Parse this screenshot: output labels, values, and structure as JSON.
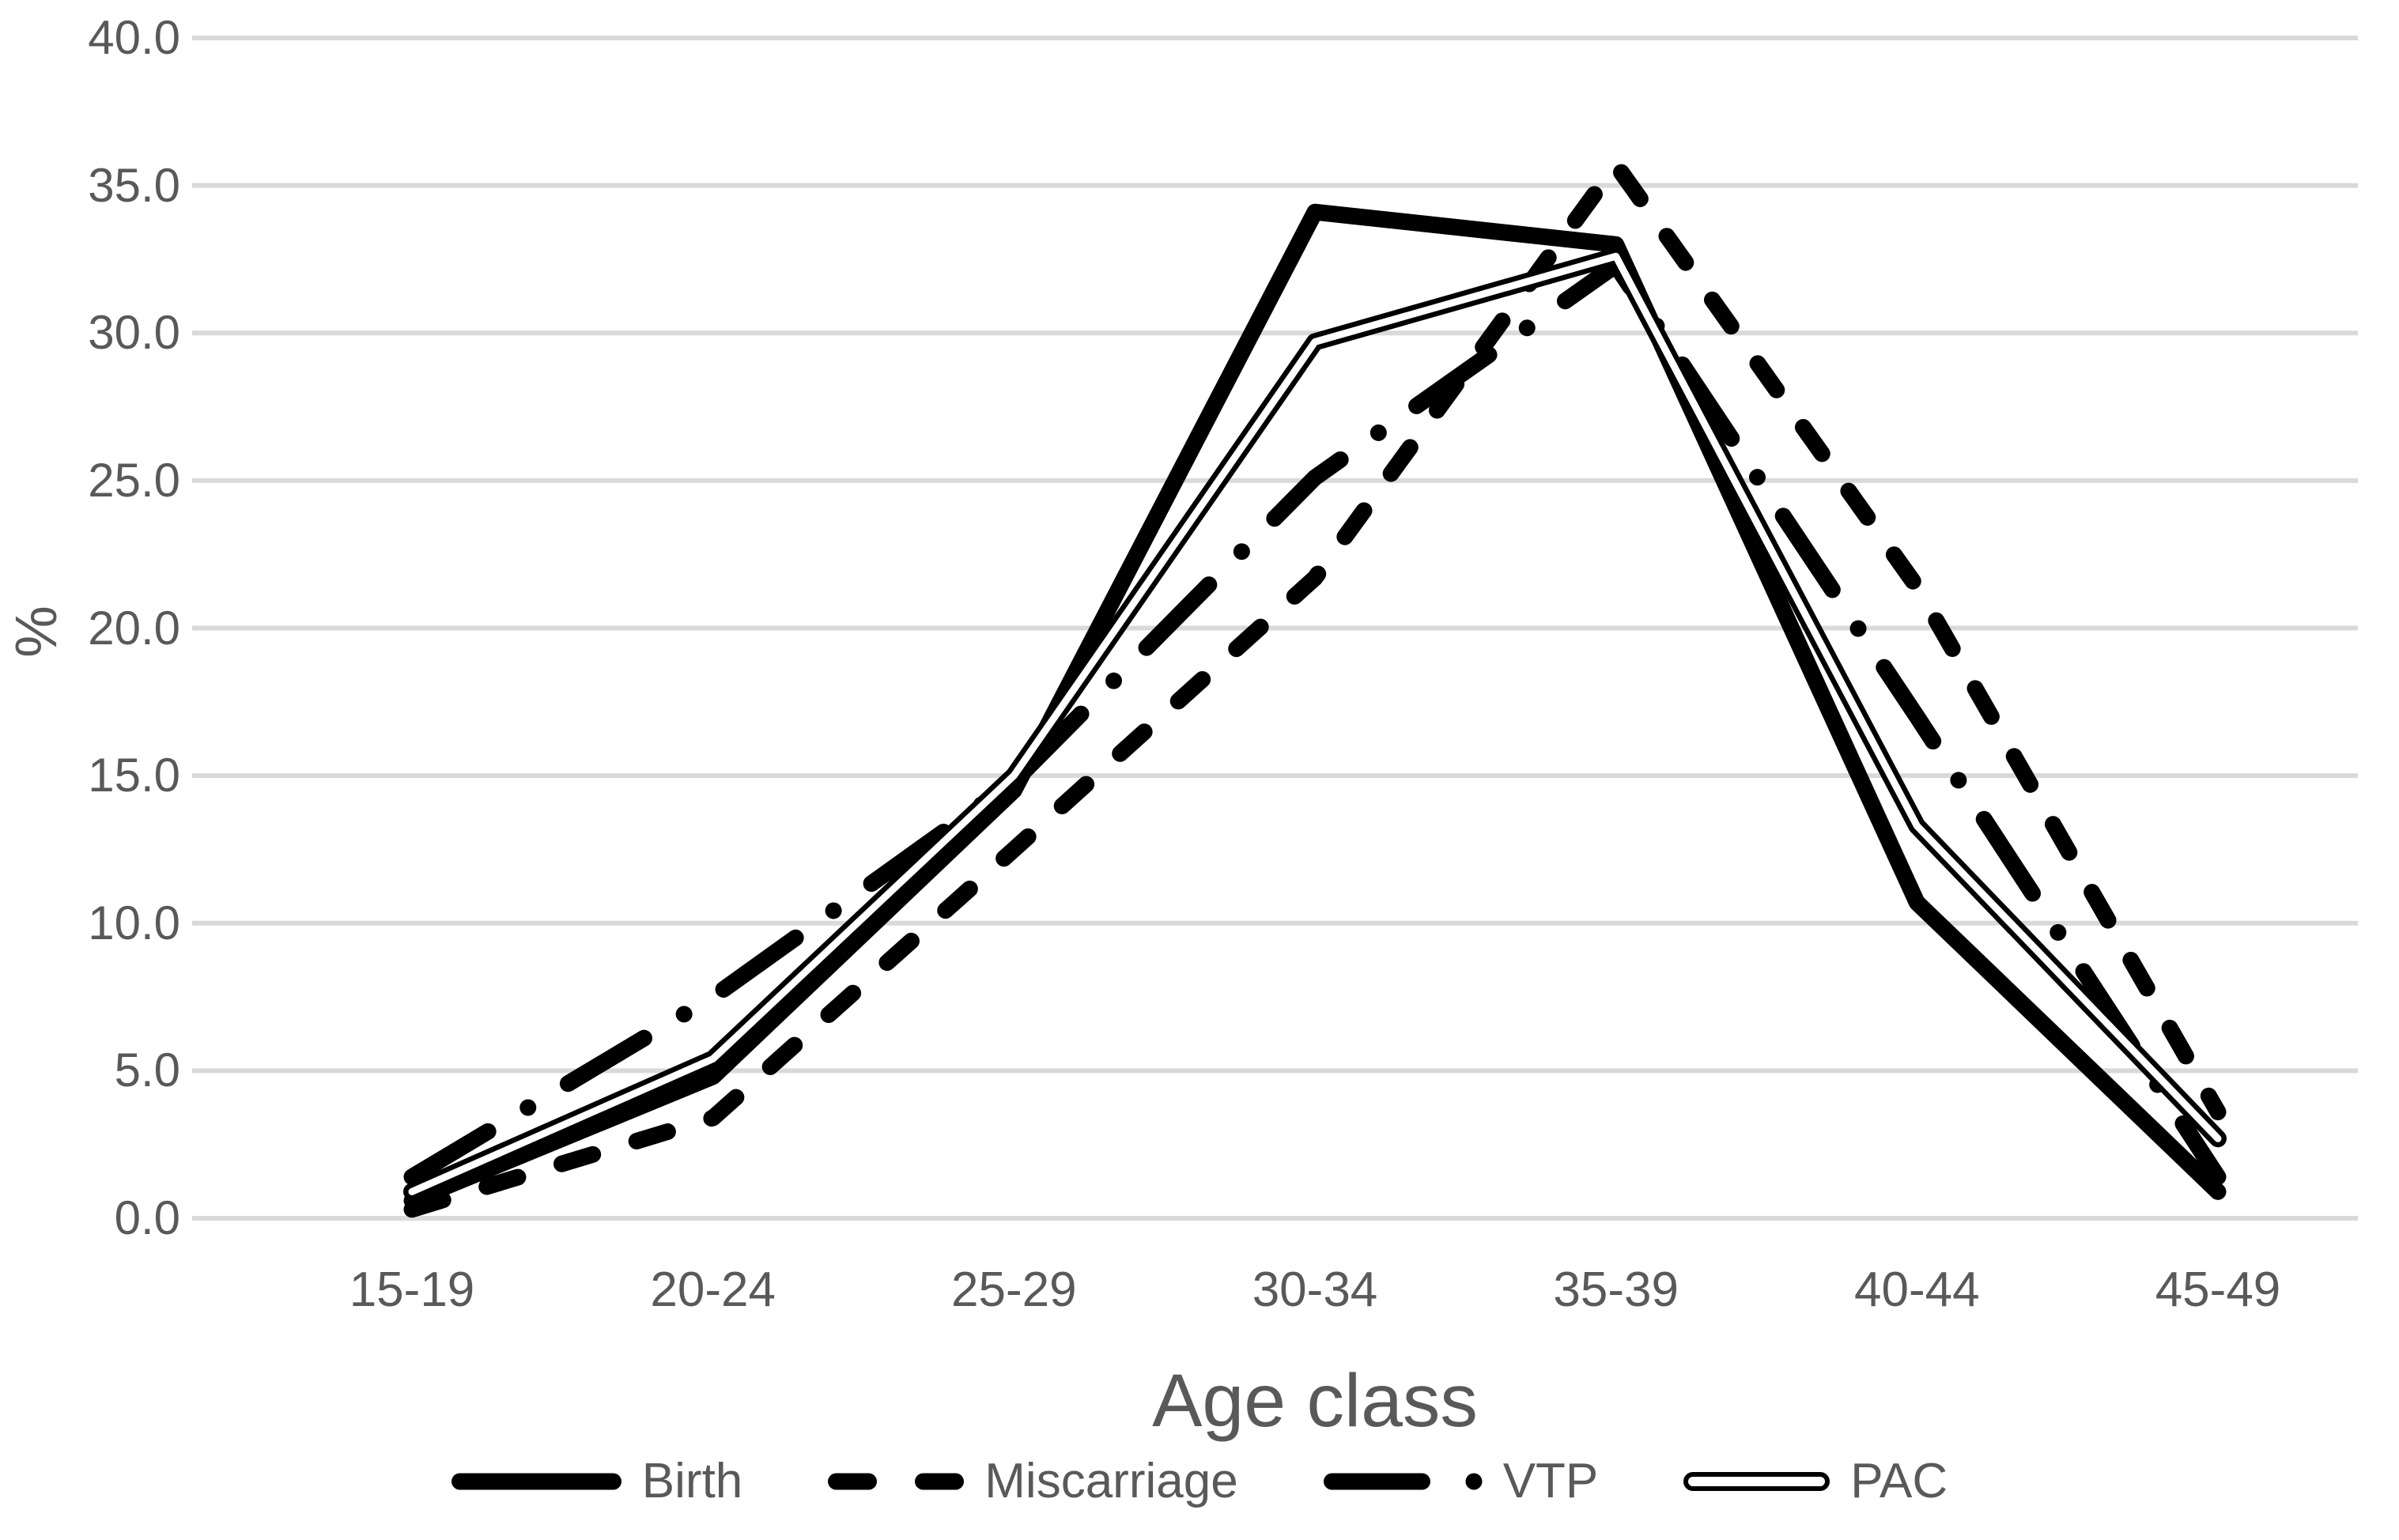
{
  "chart_data": {
    "type": "line",
    "title": "",
    "categories": [
      "15-19",
      "20-24",
      "25-29",
      "30-34",
      "35-39",
      "40-44",
      "45-49"
    ],
    "series": [
      {
        "name": "Birth",
        "line_style": "solid-thick",
        "values": [
          0.6,
          4.8,
          14.5,
          34.1,
          33.0,
          10.7,
          0.9
        ]
      },
      {
        "name": "Miscarriage",
        "line_style": "dashed",
        "values": [
          0.3,
          3.4,
          12.5,
          21.7,
          35.7,
          21.4,
          3.6
        ]
      },
      {
        "name": "VTP",
        "line_style": "dash-dot",
        "values": [
          1.4,
          7.5,
          14.8,
          25.1,
          32.3,
          17.0,
          1.4
        ]
      },
      {
        "name": "PAC",
        "line_style": "double",
        "values": [
          0.9,
          5.4,
          15.0,
          29.7,
          32.6,
          13.3,
          2.7
        ]
      }
    ],
    "xlabel": "Age class",
    "ylabel": "%",
    "ylim": [
      0.0,
      40.0
    ],
    "ytick_step": 5.0,
    "ytick_labels": [
      "0.0",
      "5.0",
      "10.0",
      "15.0",
      "20.0",
      "25.0",
      "30.0",
      "35.0",
      "40.0"
    ],
    "grid": "horizontal",
    "legend_position": "bottom",
    "colors": {
      "line": "#000000",
      "grid": "#d9d9d9",
      "text": "#595959",
      "background": "#ffffff"
    }
  }
}
